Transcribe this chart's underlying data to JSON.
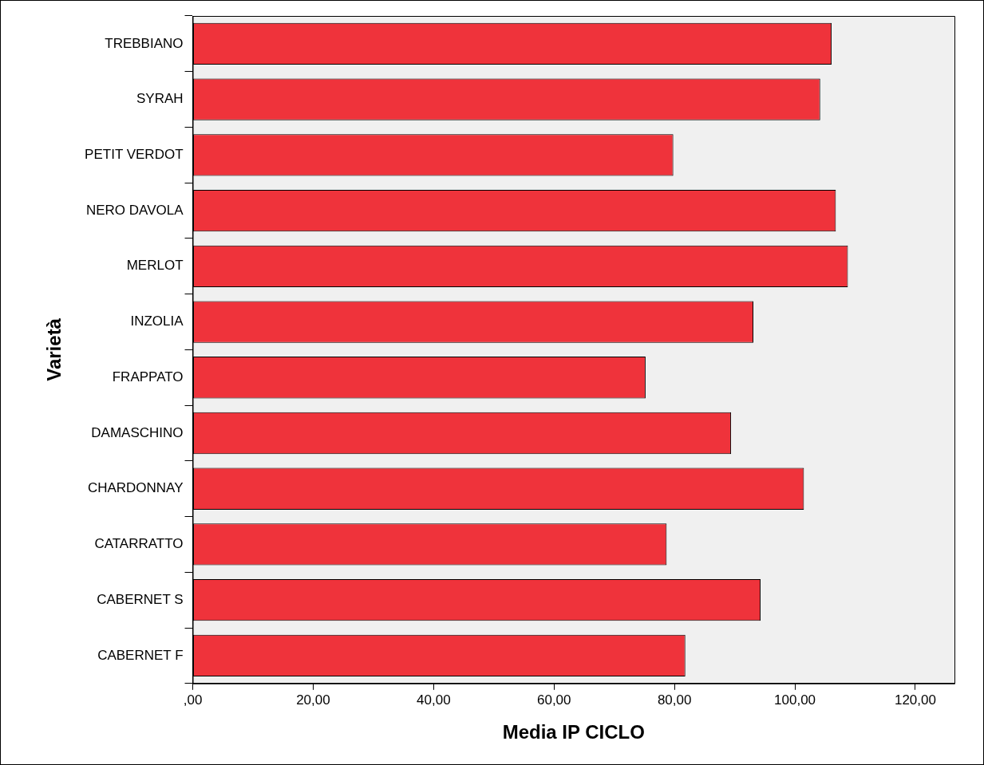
{
  "chart_data": {
    "type": "bar",
    "orientation": "horizontal",
    "xlabel": "Media IP CICLO",
    "ylabel": "Varietà",
    "categories": [
      "TREBBIANO",
      "SYRAH",
      "PETIT VERDOT",
      "NERO DAVOLA",
      "MERLOT",
      "INZOLIA",
      "FRAPPATO",
      "DAMASCHINO",
      "CHARDONNAY",
      "CATARRATTO",
      "CABERNET S",
      "CABERNET F"
    ],
    "values": [
      106.1,
      104.2,
      79.8,
      106.8,
      108.8,
      93.1,
      75.2,
      89.4,
      101.5,
      78.7,
      94.3,
      81.8
    ],
    "color": "#ef333b",
    "xlim": [
      0,
      126.5
    ],
    "xticks": [
      {
        "value": 0,
        "label": ",00"
      },
      {
        "value": 20,
        "label": "20,00"
      },
      {
        "value": 40,
        "label": "40,00"
      },
      {
        "value": 60,
        "label": "60,00"
      },
      {
        "value": 80,
        "label": "80,00"
      },
      {
        "value": 100,
        "label": "100,00"
      },
      {
        "value": 120,
        "label": "120,00"
      }
    ],
    "grid": false,
    "legend": false
  }
}
